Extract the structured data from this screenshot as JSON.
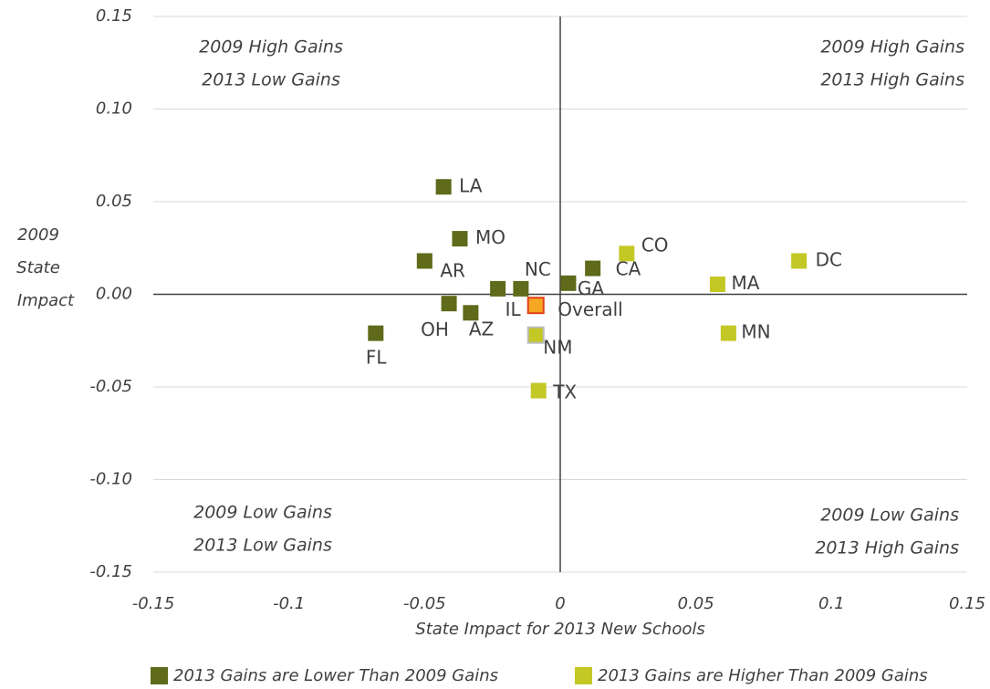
{
  "chart_data": {
    "type": "scatter",
    "xlabel": "State Impact for 2013 New Schools",
    "ylabel": [
      "2009",
      "State",
      "Impact"
    ],
    "xlim": [
      -0.15,
      0.15
    ],
    "xticks": [
      -0.15,
      -0.1,
      -0.05,
      0,
      0.05,
      0.1,
      0.15
    ],
    "ylim": [
      -0.15,
      0.15
    ],
    "yticks": [
      {
        "value": -0.15,
        "label": "-0.15"
      },
      {
        "value": -0.1,
        "label": "-0.10"
      },
      -0.05,
      {
        "value": 0,
        "label": "0.00"
      },
      0.05,
      {
        "value": 0.1,
        "label": "0.10"
      },
      0.15
    ],
    "grid": true,
    "legend": "bottom",
    "quadrants": [
      {
        "lines": [
          "2009 High Gains",
          "2013 Low Gains"
        ]
      },
      {
        "lines": [
          "2009 High Gains",
          "2013 High Gains"
        ]
      },
      {
        "lines": [
          "2009 Low Gains",
          "2013 Low Gains"
        ]
      },
      {
        "lines": [
          "2009 Low Gains",
          "2013 High Gains"
        ]
      }
    ],
    "series": [
      {
        "name": "2013 Gains are Lower Than 2009 Gains",
        "color": "#5f6a1a",
        "labels": [
          "LA",
          "MO",
          "AR",
          "NC",
          "IL",
          "GA",
          "CA",
          "OH",
          "AZ",
          "FL"
        ],
        "x": [
          -0.043,
          -0.037,
          -0.05,
          -0.0145,
          -0.023,
          0.003,
          0.012,
          -0.041,
          -0.033,
          -0.068
        ],
        "values": [
          0.058,
          0.03,
          0.018,
          0.003,
          0.003,
          0.006,
          0.014,
          -0.005,
          -0.01,
          -0.021
        ]
      },
      {
        "name": "2013 Gains are Higher Than 2009 Gains",
        "color": "#c3c825",
        "labels": [
          "CO",
          "DC",
          "MA",
          "MN",
          "TX",
          "NM"
        ],
        "x": [
          0.0245,
          0.088,
          0.058,
          0.062,
          -0.008,
          -0.009
        ],
        "values": [
          0.022,
          0.018,
          0.0054,
          -0.021,
          -0.052,
          -0.022
        ]
      }
    ],
    "highlight": {
      "label": "Overall",
      "x": -0.009,
      "y": -0.006,
      "color": "#f5a623"
    }
  }
}
